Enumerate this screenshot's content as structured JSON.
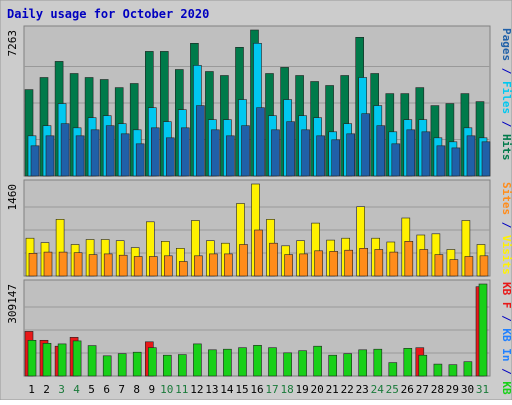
{
  "chart_data": {
    "type": "bar",
    "title": "Daily usage for October 2020",
    "x": [
      1,
      2,
      3,
      4,
      5,
      6,
      7,
      8,
      9,
      10,
      11,
      12,
      13,
      14,
      15,
      16,
      17,
      18,
      19,
      20,
      21,
      22,
      23,
      24,
      25,
      26,
      27,
      28,
      29,
      30,
      31
    ],
    "weekend_days": [
      3,
      4,
      10,
      11,
      17,
      18,
      24,
      25,
      31
    ],
    "panels": [
      {
        "id": "top",
        "max_label": "7263",
        "ylim": [
          0,
          7263
        ],
        "series": [
          {
            "name": "Hits",
            "color": "#007a4a",
            "values": [
              4300,
              4900,
              5700,
              5100,
              4900,
              4800,
              4400,
              4600,
              6200,
              6200,
              5300,
              6600,
              5200,
              5000,
              6400,
              7263,
              5100,
              5400,
              5000,
              4700,
              4500,
              5000,
              6900,
              5100,
              4100,
              4100,
              4400,
              3500,
              3600,
              4100,
              3700
            ]
          },
          {
            "name": "Files",
            "color": "#00c8f0",
            "values": [
              2000,
              2500,
              3600,
              2400,
              2900,
              3000,
              2600,
              2300,
              3400,
              2700,
              3300,
              5500,
              2800,
              2800,
              3800,
              6600,
              3000,
              3800,
              3000,
              2900,
              2200,
              2600,
              4900,
              3500,
              2200,
              2800,
              2800,
              1900,
              1700,
              2400,
              1900
            ]
          },
          {
            "name": "Pages",
            "color": "#2060a8",
            "values": [
              1500,
              2000,
              2600,
              2000,
              2300,
              2500,
              2100,
              1600,
              2400,
              1900,
              2400,
              3500,
              2300,
              2000,
              2500,
              3400,
              2300,
              2700,
              2300,
              2000,
              1800,
              2100,
              3100,
              2500,
              1600,
              2300,
              2200,
              1500,
              1400,
              2000,
              1700
            ]
          }
        ]
      },
      {
        "id": "mid",
        "max_label": "1460",
        "ylim": [
          0,
          1460
        ],
        "series": [
          {
            "name": "Visits",
            "color": "#fff200",
            "values": [
              600,
              530,
              900,
              500,
              580,
              580,
              560,
              450,
              860,
              550,
              440,
              880,
              560,
              520,
              1150,
              1460,
              900,
              480,
              560,
              840,
              570,
              600,
              1100,
              600,
              540,
              920,
              650,
              670,
              420,
              880,
              500
            ]
          },
          {
            "name": "Sites",
            "color": "#ff8c1a",
            "values": [
              360,
              380,
              380,
              370,
              340,
              350,
              330,
              310,
              310,
              320,
              230,
              320,
              350,
              350,
              500,
              730,
              520,
              340,
              350,
              400,
              390,
              410,
              440,
              420,
              380,
              550,
              420,
              340,
              260,
              310,
              320
            ]
          }
        ]
      },
      {
        "id": "bot",
        "max_label": "309147",
        "ylim": [
          0,
          309147
        ],
        "series": [
          {
            "name": "KBytes F",
            "color": "#e81818",
            "values": [
              150000,
              120000,
              100000,
              130000,
              0,
              0,
              0,
              0,
              115000,
              0,
              0,
              0,
              0,
              0,
              0,
              0,
              0,
              0,
              0,
              0,
              0,
              0,
              0,
              0,
              0,
              0,
              95000,
              0,
              0,
              0,
              300000
            ]
          },
          {
            "name": "KBytes",
            "color": "#18d018",
            "values": [
              120000,
              110000,
              108000,
              118000,
              102000,
              68000,
              75000,
              80000,
              95000,
              70000,
              72000,
              108000,
              88000,
              90000,
              95000,
              103000,
              95000,
              78000,
              85000,
              100000,
              70000,
              75000,
              88000,
              90000,
              45000,
              93000,
              70000,
              40000,
              38000,
              48000,
              309147
            ]
          },
          {
            "name": "KB In",
            "color": "#2080ff",
            "values": [
              0,
              0,
              0,
              0,
              0,
              0,
              0,
              0,
              0,
              0,
              0,
              0,
              0,
              0,
              0,
              0,
              0,
              0,
              0,
              0,
              0,
              0,
              0,
              0,
              0,
              0,
              0,
              0,
              0,
              0,
              0
            ]
          }
        ]
      }
    ],
    "right_labels": {
      "top": [
        [
          "Pages",
          "#2060a8"
        ],
        [
          " / ",
          "#0000c0"
        ],
        [
          "Files",
          "#00c8f0"
        ],
        [
          " / ",
          "#0000c0"
        ],
        [
          "Hits",
          "#007a4a"
        ]
      ],
      "mid": [
        [
          "Sites",
          "#ff8c1a"
        ],
        [
          " / ",
          "#0000c0"
        ],
        [
          "Visits",
          "#fff200"
        ]
      ],
      "bot": [
        [
          "KB F",
          "#e81818"
        ],
        [
          " / ",
          "#0000c0"
        ],
        [
          "KB In",
          "#2080ff"
        ],
        [
          " / ",
          "#0000c0"
        ],
        [
          "KB Out",
          "#18d018"
        ]
      ]
    },
    "colors": {
      "frame_bg": "#cccccc",
      "plot_bg": "#bfbfbf",
      "gridline": "#999999",
      "title": "#0000c0",
      "weekday_label": "#000000",
      "weekend_label": "#1a7a3a"
    }
  }
}
